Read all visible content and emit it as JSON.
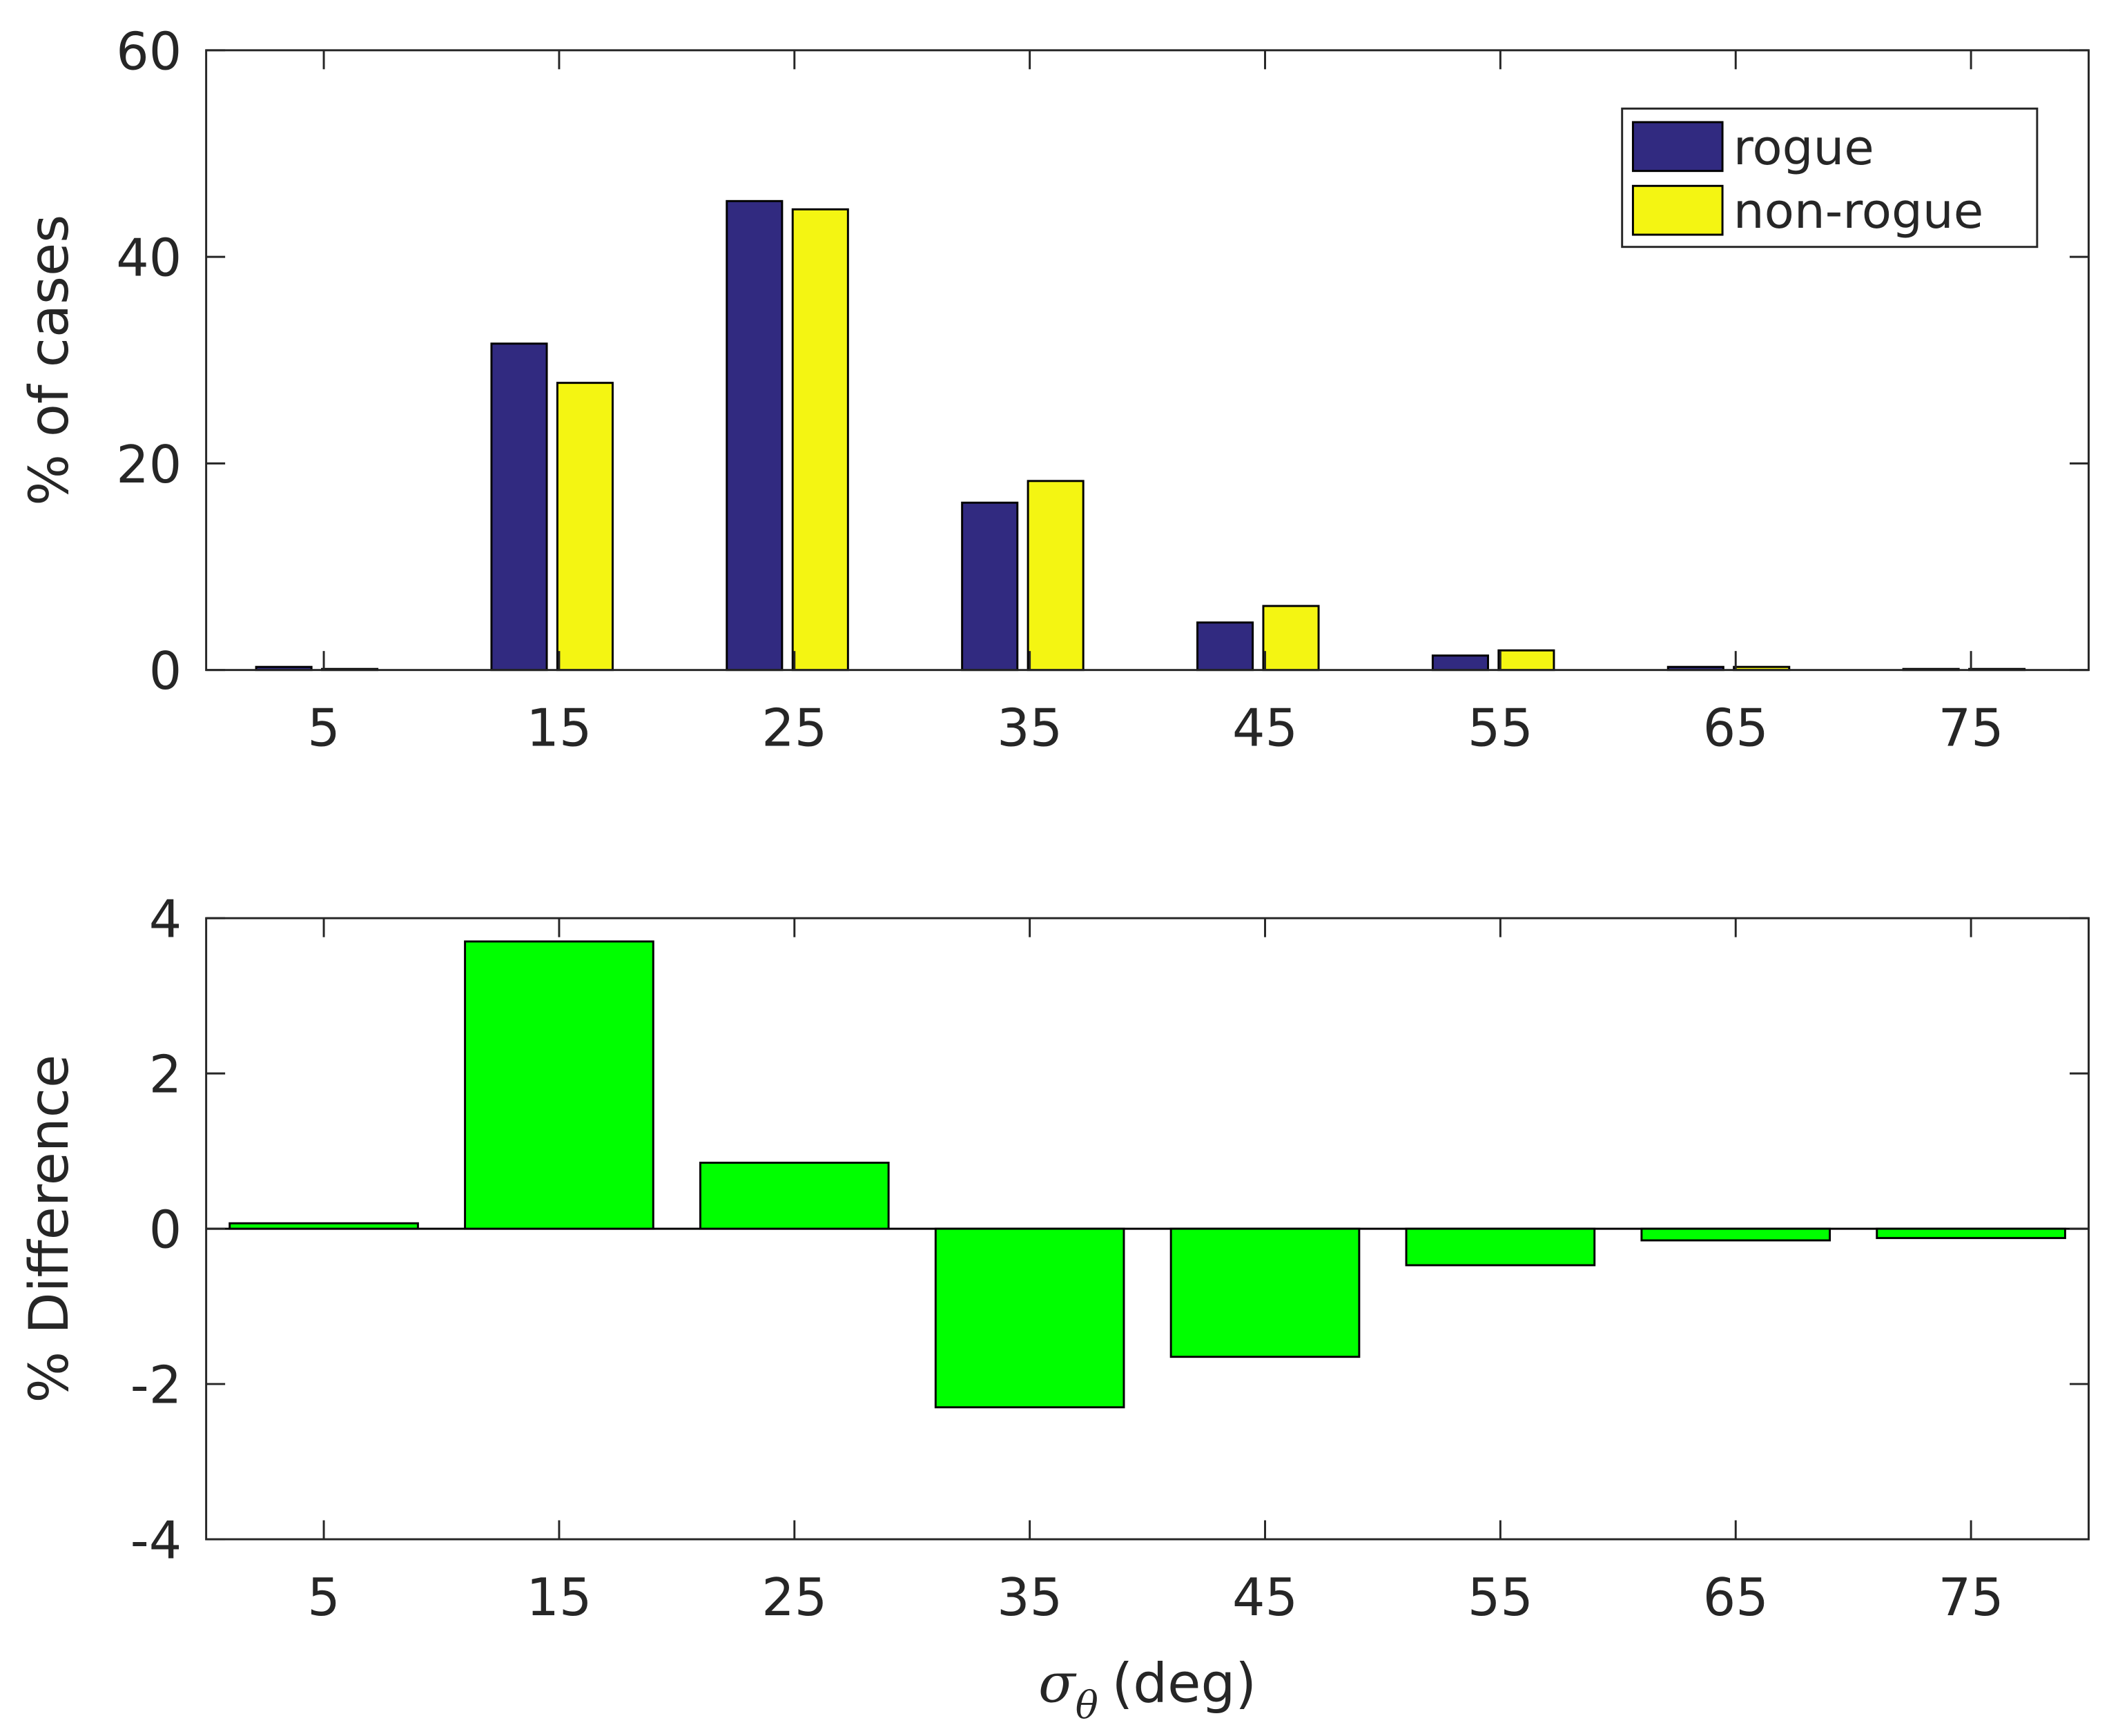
{
  "chart_data": [
    {
      "type": "bar",
      "ylabel": "% of cases",
      "x": [
        5,
        15,
        25,
        35,
        45,
        55,
        65,
        75
      ],
      "series": [
        {
          "name": "rogue",
          "color": "#312a80",
          "values": [
            0.3,
            31.6,
            45.4,
            16.2,
            4.6,
            1.4,
            0.3,
            0.1
          ]
        },
        {
          "name": "non-rogue",
          "color": "#f4f512",
          "values": [
            0.1,
            27.8,
            44.6,
            18.3,
            6.2,
            1.9,
            0.3,
            0.1
          ]
        }
      ],
      "xlim": [
        0,
        80
      ],
      "xticks": [
        5,
        15,
        25,
        35,
        45,
        55,
        65,
        75
      ],
      "ylim": [
        0,
        60
      ],
      "yticks": [
        0,
        20,
        40,
        60
      ],
      "legend": "upper right"
    },
    {
      "type": "bar",
      "ylabel": "% Difference",
      "xlabel": {
        "symbol": "σ",
        "subscript": "θ",
        "text": "(deg)"
      },
      "x": [
        5,
        15,
        25,
        35,
        45,
        55,
        65,
        75
      ],
      "series": [
        {
          "color": "#00ff00",
          "values": [
            0.07,
            3.7,
            0.85,
            -2.3,
            -1.65,
            -0.47,
            -0.15,
            -0.12
          ]
        }
      ],
      "xlim": [
        0,
        80
      ],
      "xticks": [
        5,
        15,
        25,
        35,
        45,
        55,
        65,
        75
      ],
      "ylim": [
        -4,
        4
      ],
      "yticks": [
        -4,
        -2,
        0,
        2,
        4
      ],
      "zeroline": true
    }
  ]
}
